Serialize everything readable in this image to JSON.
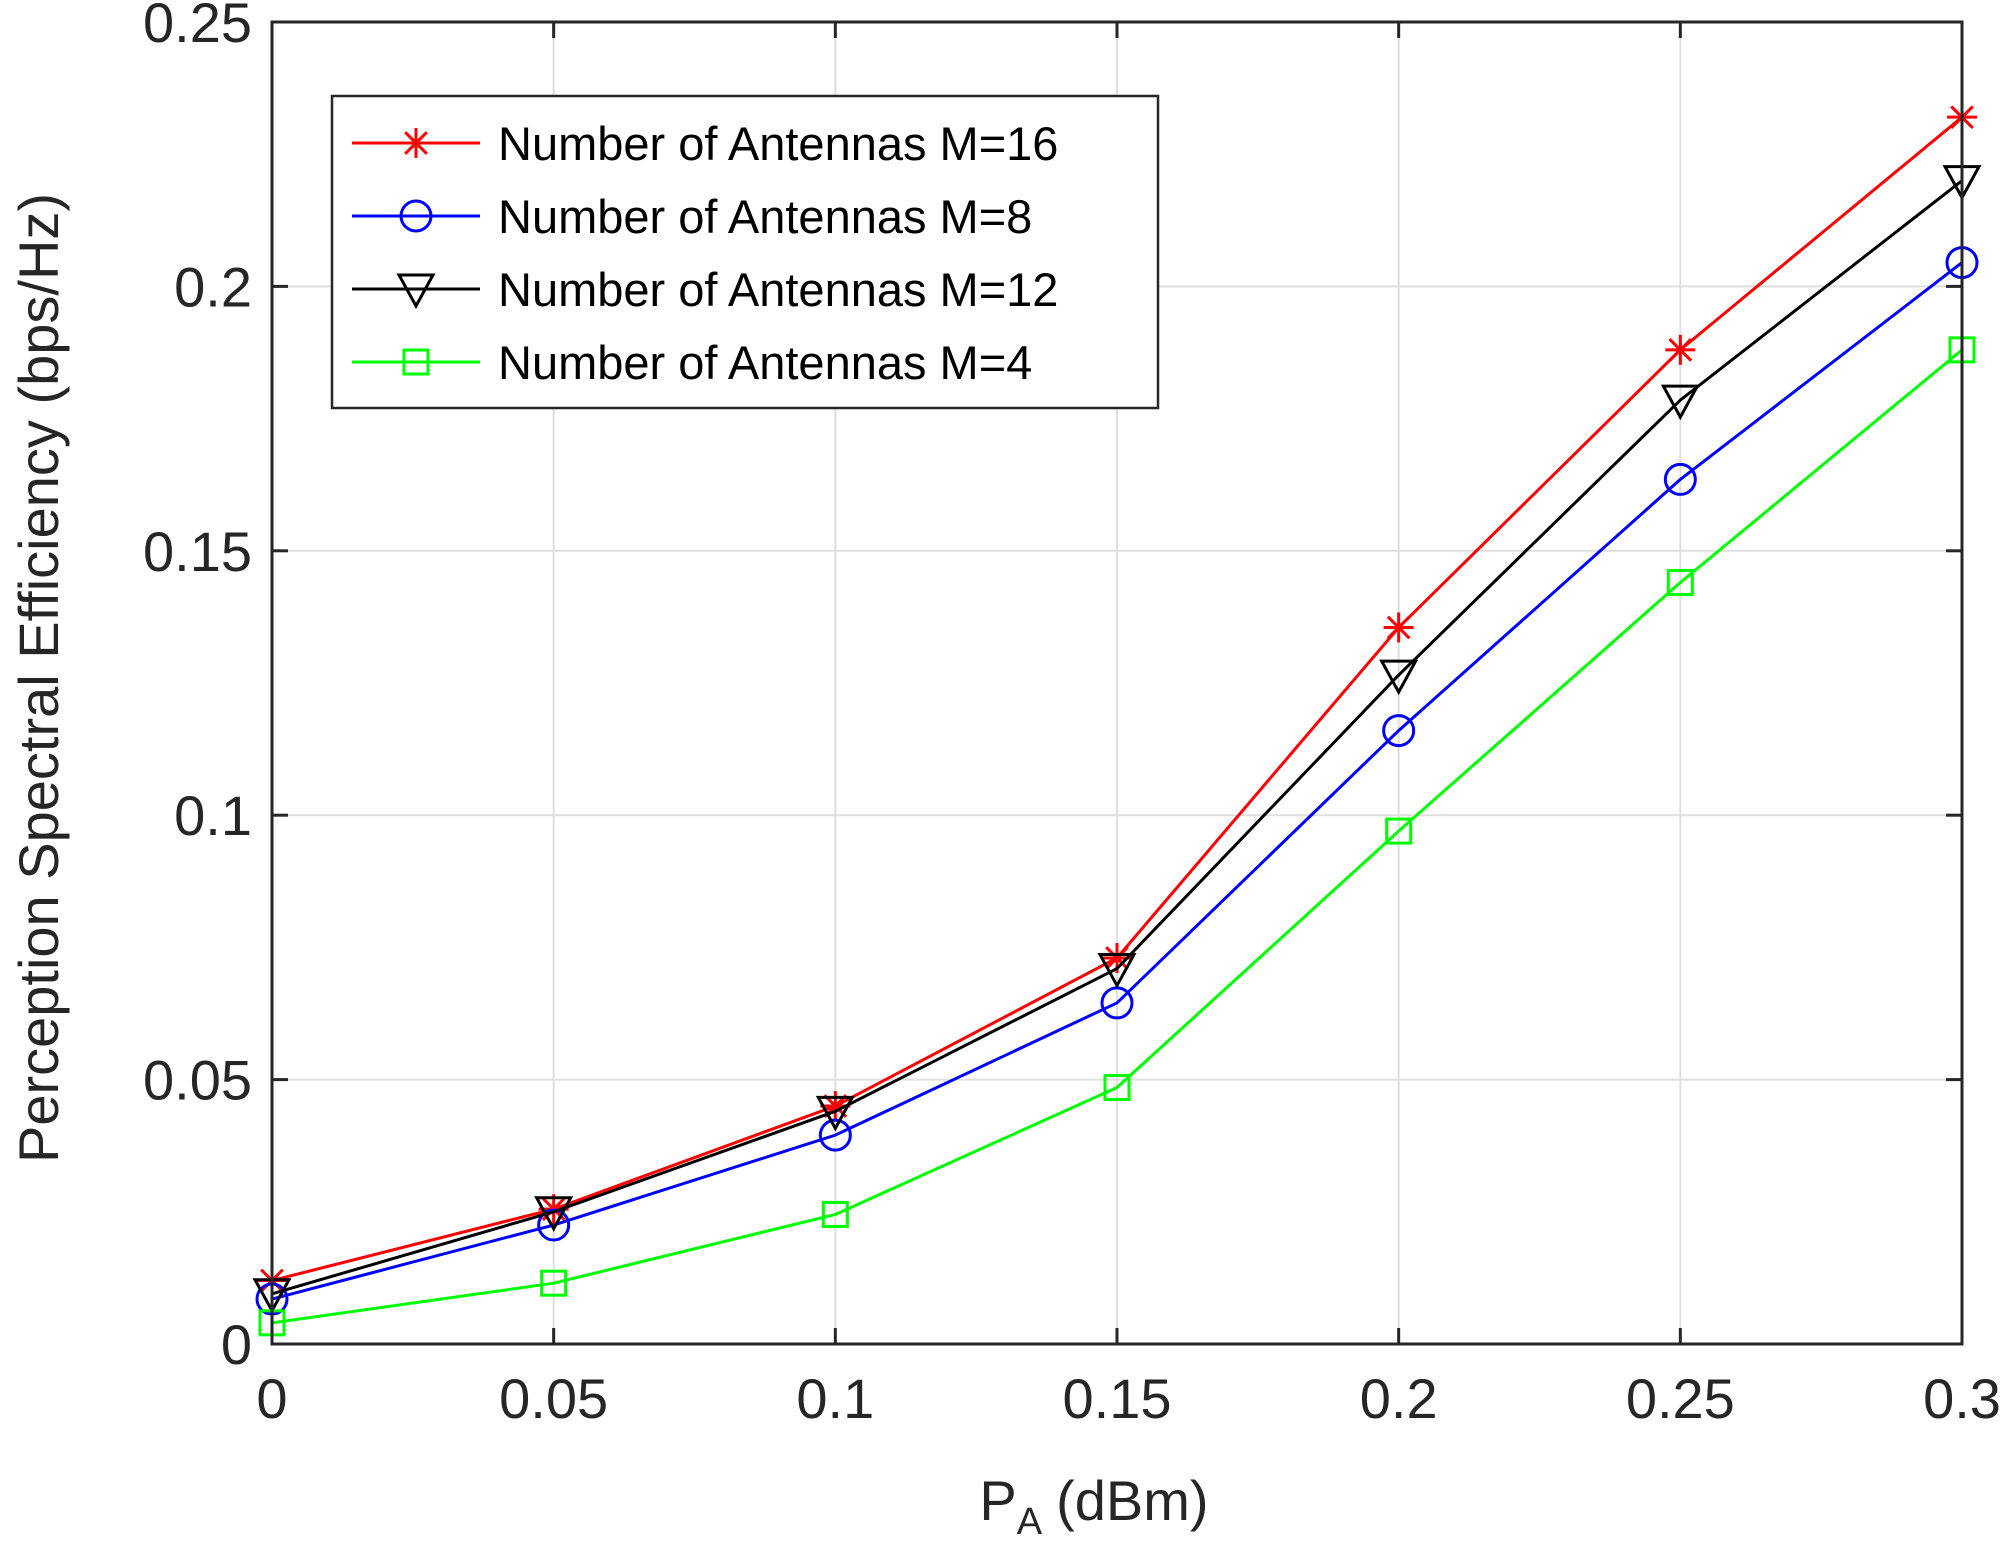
{
  "chart_data": {
    "type": "line",
    "title": "",
    "xlabel": "P",
    "xlabel_sub": "A",
    "xlabel_unit": "(dBm)",
    "ylabel": "Perception Spectral Efficiency (bps/Hz)",
    "xlim": [
      0,
      0.3
    ],
    "ylim": [
      0,
      0.25
    ],
    "grid": true,
    "legend_position": "top-left",
    "x": [
      0,
      0.05,
      0.1,
      0.15,
      0.2,
      0.25,
      0.3
    ],
    "x_tick_labels": [
      "0",
      "0.05",
      "0.1",
      "0.15",
      "0.2",
      "0.25",
      "0.3"
    ],
    "y_ticks": [
      0,
      0.05,
      0.1,
      0.15,
      0.2,
      0.25
    ],
    "y_tick_labels": [
      "0",
      "0.05",
      "0.1",
      "0.15",
      "0.2",
      "0.25"
    ],
    "series": [
      {
        "name": "Number of Antennas M=16",
        "color": "#ff0000",
        "marker": "asterisk",
        "values": [
          0.012,
          0.0255,
          0.045,
          0.073,
          0.1355,
          0.188,
          0.232
        ]
      },
      {
        "name": "Number of Antennas M=8",
        "color": "#0000ff",
        "marker": "circle",
        "values": [
          0.0085,
          0.0225,
          0.0395,
          0.0645,
          0.116,
          0.1635,
          0.2045
        ]
      },
      {
        "name": "Number of Antennas M=12",
        "color": "#000000",
        "marker": "triangle-down",
        "values": [
          0.0095,
          0.025,
          0.044,
          0.071,
          0.1265,
          0.1785,
          0.22
        ]
      },
      {
        "name": "Number of Antennas M=4",
        "color": "#00ff00",
        "marker": "square",
        "values": [
          0.004,
          0.0115,
          0.0245,
          0.0485,
          0.097,
          0.144,
          0.188
        ]
      }
    ]
  }
}
